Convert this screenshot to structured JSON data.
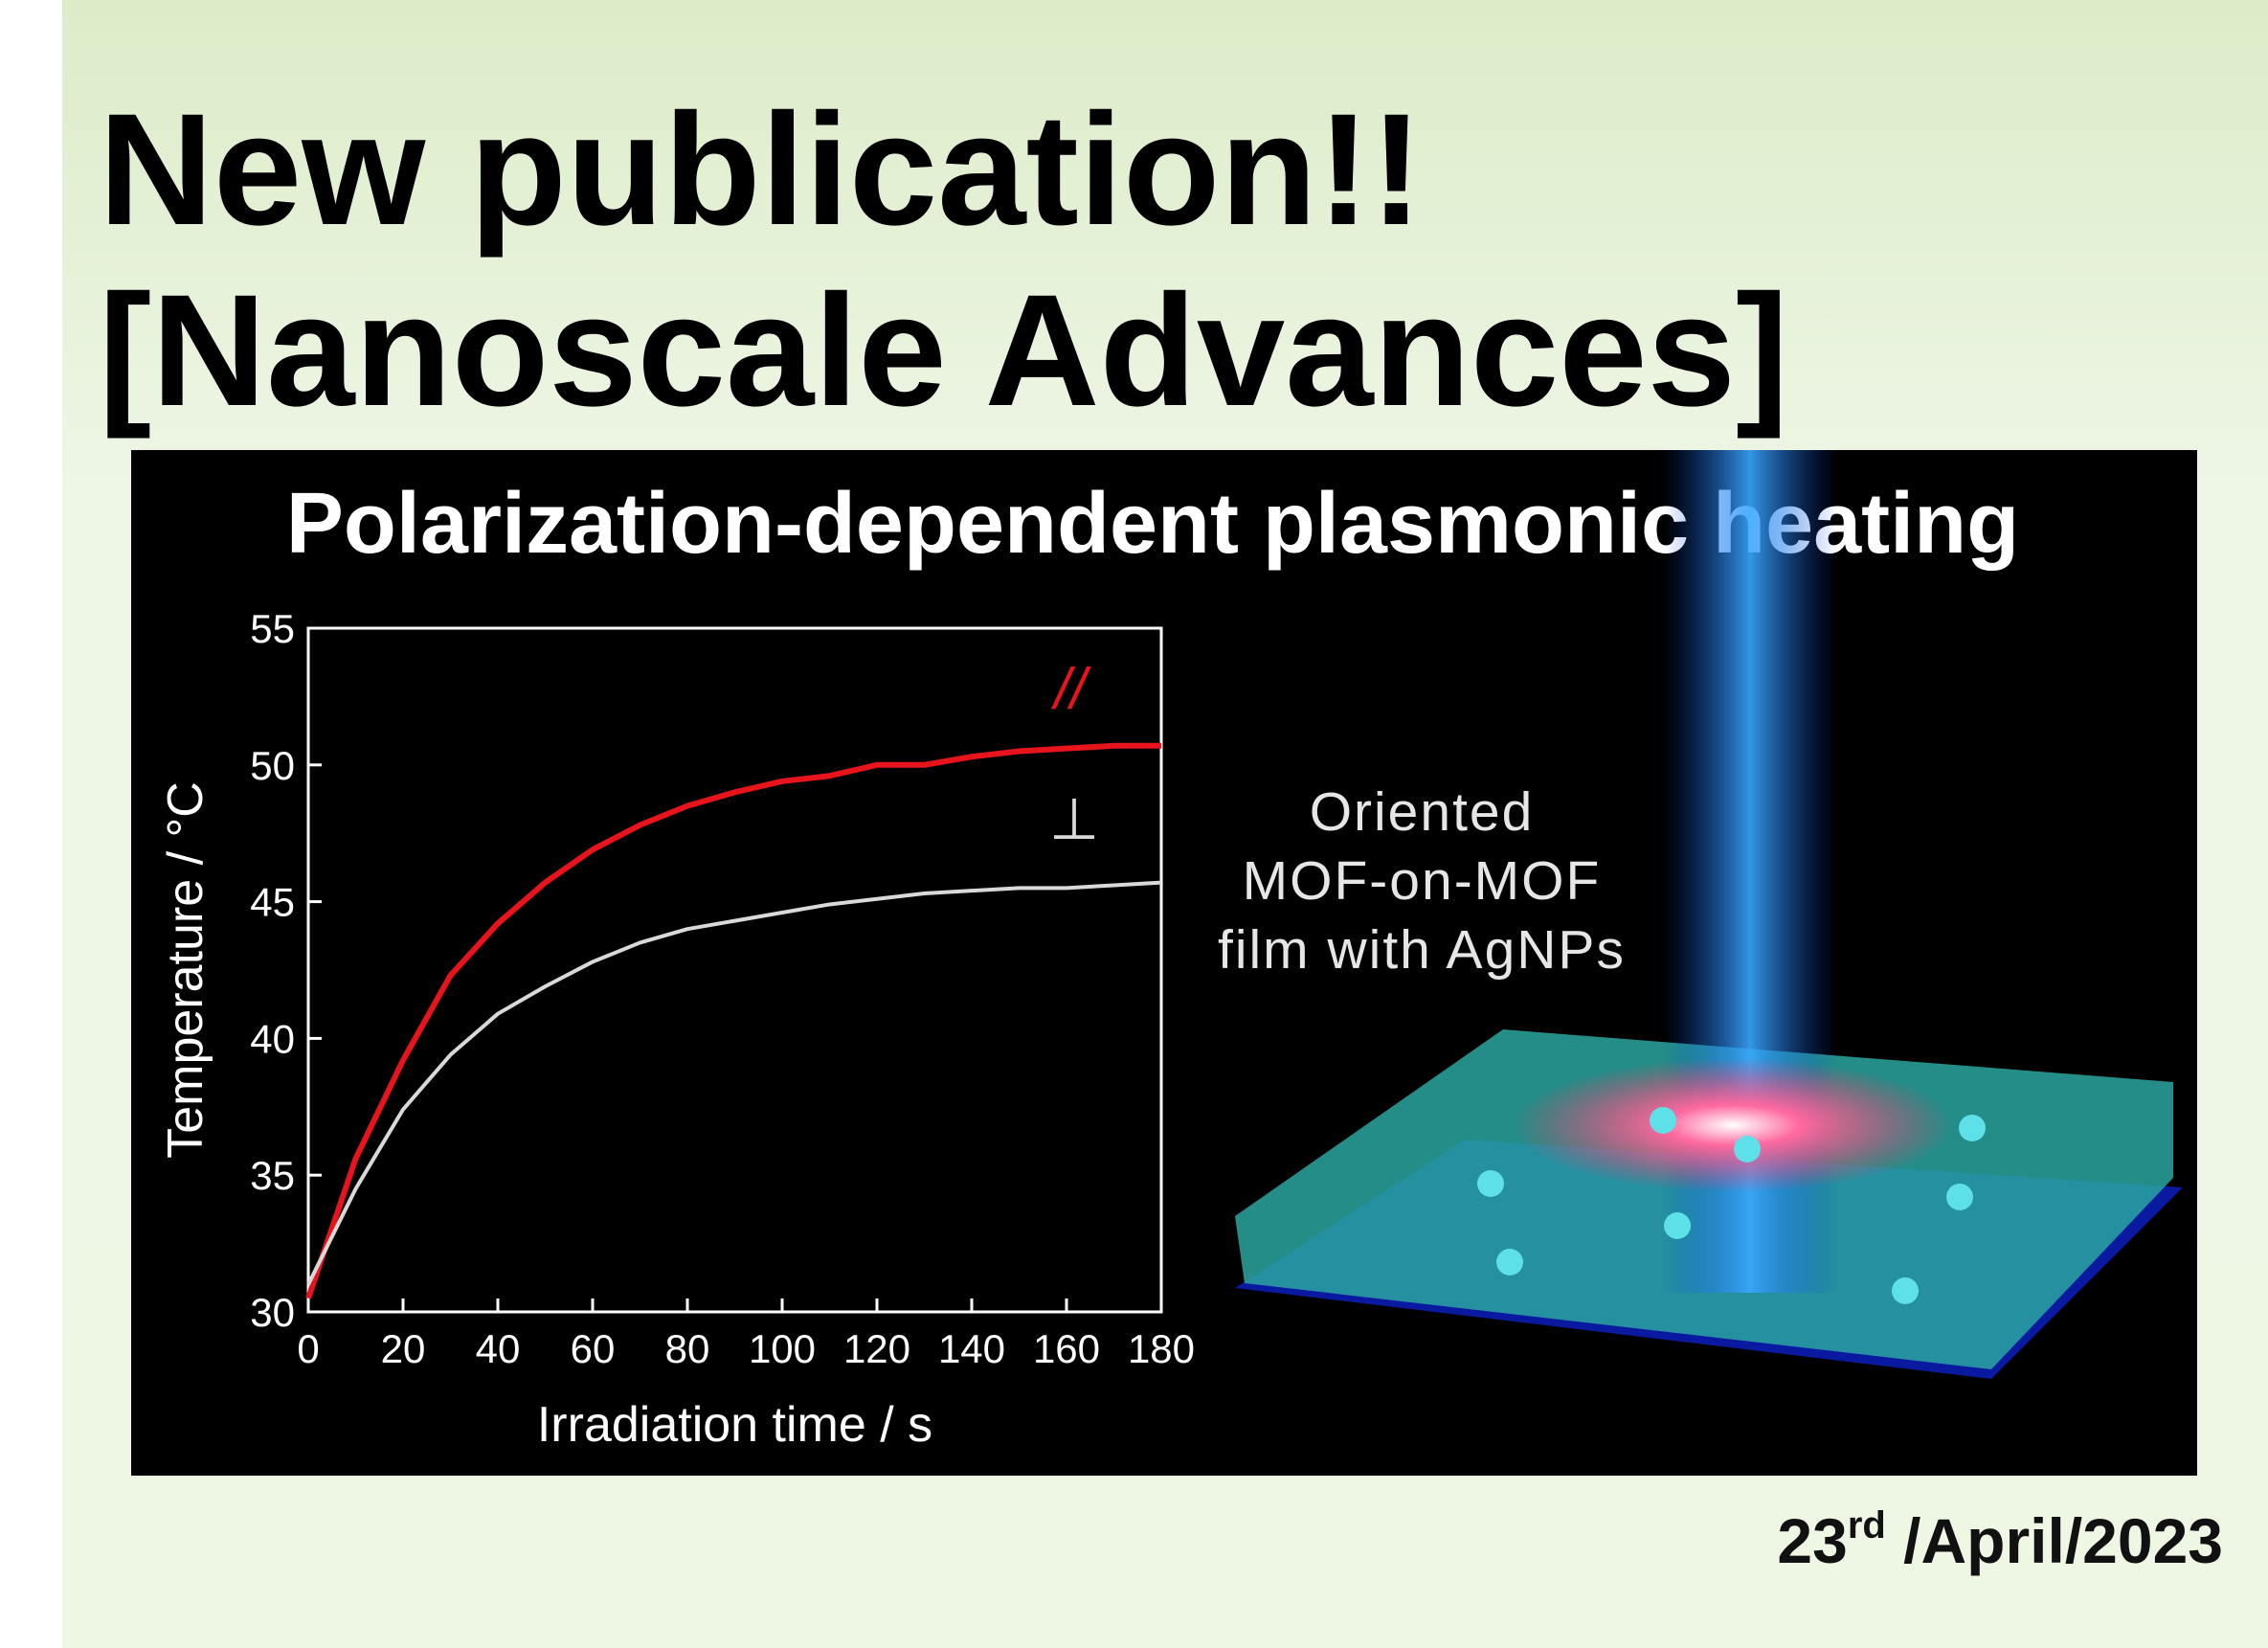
{
  "header": {
    "line1": "New publication!!",
    "line2": "[Nanoscale Advances]"
  },
  "figure": {
    "title": "Polarization-dependent plasmonic heating",
    "caption_lines": [
      "Oriented",
      "MOF-on-MOF",
      "film with AgNPs"
    ]
  },
  "chart_data": {
    "type": "line",
    "x_label": "Irradiation time / s",
    "y_label": "Temperature / °C",
    "x": [
      0,
      10,
      20,
      30,
      40,
      50,
      60,
      70,
      80,
      90,
      100,
      110,
      120,
      130,
      140,
      150,
      160,
      170,
      180
    ],
    "series": [
      {
        "name": "//",
        "color": "#e8141b",
        "values": [
          30.5,
          35.6,
          39.2,
          42.3,
          44.2,
          45.7,
          46.9,
          47.8,
          48.5,
          49,
          49.4,
          49.6,
          50,
          50,
          50.3,
          50.5,
          50.6,
          50.7,
          50.7
        ]
      },
      {
        "name": "⊥",
        "color": "#d9d9d9",
        "values": [
          31,
          34.5,
          37.4,
          39.4,
          40.9,
          41.9,
          42.8,
          43.5,
          44,
          44.3,
          44.6,
          44.9,
          45.1,
          45.3,
          45.4,
          45.5,
          45.5,
          45.6,
          45.7
        ]
      }
    ],
    "xlim": [
      0,
      180
    ],
    "ylim": [
      30,
      55
    ],
    "xticks": [
      0,
      20,
      40,
      60,
      80,
      100,
      120,
      140,
      160,
      180
    ],
    "yticks": [
      30,
      35,
      40,
      45,
      50,
      55
    ]
  },
  "date": {
    "day": "23",
    "suffix": "rd",
    "rest": " /April/2023"
  }
}
